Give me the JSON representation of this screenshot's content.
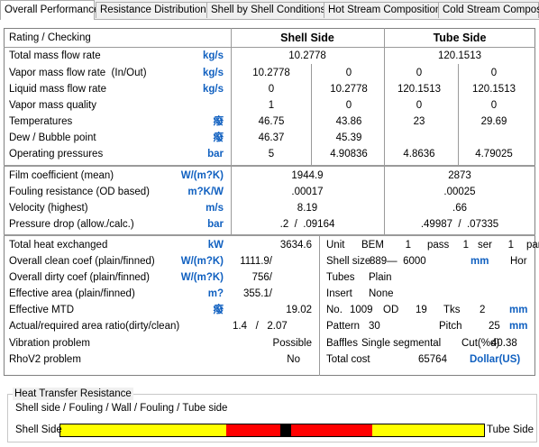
{
  "tabs": [
    "Overall Performance",
    "Resistance Distribution",
    "Shell by Shell Conditions",
    "Hot Stream Composition",
    "Cold Stream Compositi"
  ],
  "header": {
    "title": "Rating / Checking",
    "shell": "Shell Side",
    "tube": "Tube Side"
  },
  "streams": [
    {
      "label": "Total mass flow rate",
      "unit": "kg/s",
      "shell": [
        "10.2778"
      ],
      "tube": [
        "120.1513"
      ]
    },
    {
      "label": "Vapor mass flow rate  (In/Out)",
      "unit": "kg/s",
      "shell": [
        "10.2778",
        "0"
      ],
      "tube": [
        "0",
        "0"
      ]
    },
    {
      "label": "Liquid mass flow rate",
      "unit": "kg/s",
      "shell": [
        "0",
        "10.2778"
      ],
      "tube": [
        "120.1513",
        "120.1513"
      ]
    },
    {
      "label": "Vapor mass quality",
      "shell": [
        "1",
        "0"
      ],
      "tube": [
        "0",
        "0"
      ]
    },
    {
      "label": "Temperatures",
      "unit": "癈",
      "shell": [
        "46.75",
        "43.86"
      ],
      "tube": [
        "23",
        "29.69"
      ]
    },
    {
      "label": "Dew / Bubble point",
      "unit": "癈",
      "shell": [
        "46.37",
        "45.39"
      ],
      "tube": []
    },
    {
      "label": "Operating pressures",
      "unit": "bar",
      "shell": [
        "5",
        "4.90836"
      ],
      "tube": [
        "4.8636",
        "4.79025"
      ]
    }
  ],
  "performance": [
    {
      "label": "Film coefficient (mean)",
      "unit": "W/(m?K)",
      "shell": [
        "1944.9"
      ],
      "tube": [
        "2873"
      ]
    },
    {
      "label": "Fouling resistance (OD based)",
      "unit": "m?K/W",
      "shell": [
        ".00017"
      ],
      "tube": [
        ".00025"
      ]
    },
    {
      "label": "Velocity (highest)",
      "unit": "m/s",
      "shell": [
        "8.19"
      ],
      "tube": [
        ".66"
      ]
    },
    {
      "label": "Pressure drop (allow./calc.)",
      "unit": "bar",
      "shell": [
        ".2  /  .09164"
      ],
      "tube": [
        ".49987  /  .07335"
      ]
    }
  ],
  "summary": [
    {
      "label": "Total heat exchanged",
      "unit": "kW",
      "value": "3634.6"
    },
    {
      "label": "Overall clean coef (plain/finned)",
      "unit": "W/(m?K)",
      "value": "1111.9/"
    },
    {
      "label": "Overall dirty coef (plain/finned)",
      "unit": "W/(m?K)",
      "value": "756/"
    },
    {
      "label": "Effective area (plain/finned)",
      "unit": "m?",
      "value": "355.1/"
    },
    {
      "label": "Effective MTD",
      "unit": "癈",
      "value": "19.02"
    },
    {
      "label": "Actual/required area ratio(dirty/clean)",
      "value": "1.4   /   2.07"
    },
    {
      "label": "Vibration problem",
      "value": "Possible"
    },
    {
      "label": "RhoV2 problem",
      "value": "No"
    }
  ],
  "geometry": [
    [
      "Unit",
      "BEM",
      "1",
      "pass",
      "1",
      "ser",
      "1",
      "par"
    ],
    [
      "Shell size",
      "889—  6000",
      "mm",
      "Hor"
    ],
    [
      "Tubes",
      "Plain"
    ],
    [
      "Insert",
      "None"
    ],
    [
      "No.",
      "1009",
      "OD",
      "19",
      "Tks",
      "2",
      "mm"
    ],
    [
      "Pattern",
      "30",
      "Pitch",
      "25",
      "mm"
    ],
    [
      "Baffles",
      "Single segmental",
      "Cut(%d)",
      "40.38"
    ],
    [
      "Total cost",
      "65764",
      "Dollar(US)"
    ]
  ],
  "resistance": {
    "title": "Heat Transfer Resistance",
    "legend": "Shell side / Fouling / Wall / Fouling / Tube side",
    "left": "Shell Side",
    "right": "Tube Side"
  }
}
